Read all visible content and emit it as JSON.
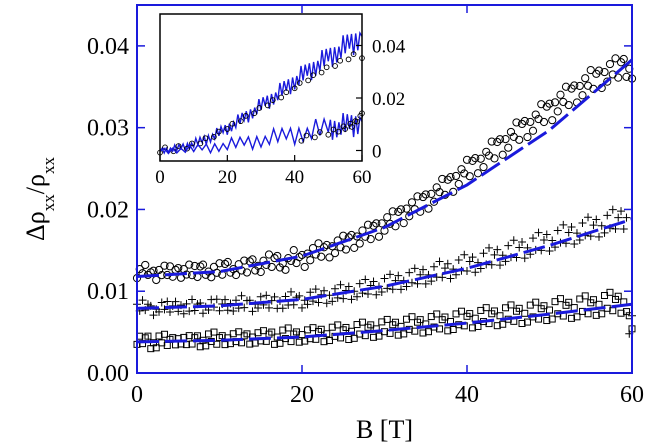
{
  "chart_data": [
    {
      "type": "scatter",
      "title": "",
      "xlabel": "B [T]",
      "ylabel": "Δρ_xx/ρ_xx",
      "xlim": [
        0,
        60
      ],
      "ylim": [
        0,
        0.045
      ],
      "x_ticks": [
        0,
        20,
        40,
        60
      ],
      "x_tick_labels": [
        "0",
        "20",
        "40",
        "60"
      ],
      "y_ticks": [
        0,
        0.01,
        0.02,
        0.03,
        0.04
      ],
      "y_tick_labels": [
        "0.00",
        "0.01",
        "0.02",
        "0.03",
        "0.04"
      ],
      "grid": false,
      "colors": {
        "data": "#000000",
        "fit": "#1a1adc",
        "frame": "#1a1adc"
      },
      "series": [
        {
          "marker": "circle",
          "points": [
            [
              0,
              0.0122
            ],
            [
              1,
              0.0125
            ],
            [
              2,
              0.0121
            ],
            [
              3,
              0.0126
            ],
            [
              4,
              0.0123
            ],
            [
              5,
              0.0124
            ],
            [
              6,
              0.0127
            ],
            [
              7,
              0.0123
            ],
            [
              8,
              0.0128
            ],
            [
              9,
              0.0124
            ],
            [
              10,
              0.0126
            ],
            [
              11,
              0.0131
            ],
            [
              12,
              0.0127
            ],
            [
              13,
              0.0129
            ],
            [
              14,
              0.0134
            ],
            [
              15,
              0.0131
            ],
            [
              16,
              0.0136
            ],
            [
              17,
              0.0138
            ],
            [
              18,
              0.0134
            ],
            [
              19,
              0.0141
            ],
            [
              20,
              0.0139
            ],
            [
              21,
              0.0146
            ],
            [
              22,
              0.0149
            ],
            [
              23,
              0.0151
            ],
            [
              24,
              0.0155
            ],
            [
              25,
              0.0158
            ],
            [
              26,
              0.0163
            ],
            [
              27,
              0.0167
            ],
            [
              28,
              0.0171
            ],
            [
              29,
              0.0177
            ],
            [
              30,
              0.0183
            ],
            [
              31,
              0.0187
            ],
            [
              32,
              0.0194
            ],
            [
              33,
              0.0201
            ],
            [
              34,
              0.0205
            ],
            [
              35,
              0.0212
            ],
            [
              36,
              0.0219
            ],
            [
              37,
              0.0226
            ],
            [
              38,
              0.0233
            ],
            [
              39,
              0.0241
            ],
            [
              40,
              0.0249
            ],
            [
              41,
              0.0256
            ],
            [
              42,
              0.0262
            ],
            [
              43,
              0.0271
            ],
            [
              44,
              0.0279
            ],
            [
              45,
              0.0286
            ],
            [
              46,
              0.0294
            ],
            [
              47,
              0.0301
            ],
            [
              48,
              0.0307
            ],
            [
              49,
              0.0316
            ],
            [
              50,
              0.0322
            ],
            [
              51,
              0.0331
            ],
            [
              52,
              0.0337
            ],
            [
              53,
              0.0344
            ],
            [
              54,
              0.0351
            ],
            [
              55,
              0.0357
            ],
            [
              56,
              0.0362
            ],
            [
              57,
              0.0368
            ],
            [
              58,
              0.0371
            ],
            [
              59,
              0.0376
            ],
            [
              60,
              0.0372
            ]
          ]
        },
        {
          "marker": "plus",
          "points": [
            [
              0,
              0.0079
            ],
            [
              1,
              0.0082
            ],
            [
              2,
              0.0078
            ],
            [
              3,
              0.0081
            ],
            [
              4,
              0.008
            ],
            [
              5,
              0.0083
            ],
            [
              6,
              0.0079
            ],
            [
              7,
              0.0082
            ],
            [
              8,
              0.0081
            ],
            [
              9,
              0.0084
            ],
            [
              10,
              0.0082
            ],
            [
              11,
              0.0085
            ],
            [
              12,
              0.0083
            ],
            [
              13,
              0.0086
            ],
            [
              14,
              0.0084
            ],
            [
              15,
              0.0087
            ],
            [
              16,
              0.0086
            ],
            [
              17,
              0.0088
            ],
            [
              18,
              0.0087
            ],
            [
              19,
              0.009
            ],
            [
              20,
              0.0089
            ],
            [
              21,
              0.0092
            ],
            [
              22,
              0.0093
            ],
            [
              23,
              0.0095
            ],
            [
              24,
              0.0096
            ],
            [
              25,
              0.0098
            ],
            [
              26,
              0.01
            ],
            [
              27,
              0.0102
            ],
            [
              28,
              0.0104
            ],
            [
              29,
              0.0106
            ],
            [
              30,
              0.0108
            ],
            [
              31,
              0.011
            ],
            [
              32,
              0.0113
            ],
            [
              33,
              0.0115
            ],
            [
              34,
              0.0117
            ],
            [
              35,
              0.012
            ],
            [
              36,
              0.0122
            ],
            [
              37,
              0.0125
            ],
            [
              38,
              0.0127
            ],
            [
              39,
              0.013
            ],
            [
              40,
              0.0133
            ],
            [
              41,
              0.0135
            ],
            [
              42,
              0.0138
            ],
            [
              43,
              0.0141
            ],
            [
              44,
              0.0144
            ],
            [
              45,
              0.0147
            ],
            [
              46,
              0.015
            ],
            [
              47,
              0.0153
            ],
            [
              48,
              0.0156
            ],
            [
              49,
              0.0159
            ],
            [
              50,
              0.0162
            ],
            [
              51,
              0.0165
            ],
            [
              52,
              0.0168
            ],
            [
              53,
              0.0171
            ],
            [
              54,
              0.0174
            ],
            [
              55,
              0.0177
            ],
            [
              56,
              0.018
            ],
            [
              57,
              0.0183
            ],
            [
              58,
              0.0186
            ],
            [
              59,
              0.019
            ],
            [
              60,
              0.006
            ]
          ]
        },
        {
          "marker": "square",
          "points": [
            [
              0,
              0.0038
            ],
            [
              1,
              0.0041
            ],
            [
              2,
              0.0037
            ],
            [
              3,
              0.004
            ],
            [
              4,
              0.0039
            ],
            [
              5,
              0.0042
            ],
            [
              6,
              0.0038
            ],
            [
              7,
              0.0041
            ],
            [
              8,
              0.004
            ],
            [
              9,
              0.0042
            ],
            [
              10,
              0.0041
            ],
            [
              11,
              0.0043
            ],
            [
              12,
              0.0042
            ],
            [
              13,
              0.0043
            ],
            [
              14,
              0.0044
            ],
            [
              15,
              0.0043
            ],
            [
              16,
              0.0045
            ],
            [
              17,
              0.0044
            ],
            [
              18,
              0.0046
            ],
            [
              19,
              0.0045
            ],
            [
              20,
              0.0047
            ],
            [
              21,
              0.0046
            ],
            [
              22,
              0.0048
            ],
            [
              23,
              0.0048
            ],
            [
              24,
              0.0049
            ],
            [
              25,
              0.005
            ],
            [
              26,
              0.0051
            ],
            [
              27,
              0.0052
            ],
            [
              28,
              0.0053
            ],
            [
              29,
              0.0054
            ],
            [
              30,
              0.0055
            ],
            [
              31,
              0.0056
            ],
            [
              32,
              0.0057
            ],
            [
              33,
              0.0058
            ],
            [
              34,
              0.0059
            ],
            [
              35,
              0.006
            ],
            [
              36,
              0.0061
            ],
            [
              37,
              0.0062
            ],
            [
              38,
              0.0063
            ],
            [
              39,
              0.0064
            ],
            [
              40,
              0.0066
            ],
            [
              41,
              0.0067
            ],
            [
              42,
              0.0068
            ],
            [
              43,
              0.0069
            ],
            [
              44,
              0.007
            ],
            [
              45,
              0.0071
            ],
            [
              46,
              0.0072
            ],
            [
              47,
              0.0073
            ],
            [
              48,
              0.0074
            ],
            [
              49,
              0.0075
            ],
            [
              50,
              0.0077
            ],
            [
              51,
              0.0078
            ],
            [
              52,
              0.0079
            ],
            [
              53,
              0.008
            ],
            [
              54,
              0.0081
            ],
            [
              55,
              0.0082
            ],
            [
              56,
              0.0084
            ],
            [
              57,
              0.0085
            ],
            [
              58,
              0.0086
            ],
            [
              59,
              0.0087
            ],
            [
              60,
              0.006
            ]
          ]
        }
      ],
      "fit_curves": [
        {
          "style": "dashed",
          "points": [
            [
              0,
              0.0118
            ],
            [
              10,
              0.0124
            ],
            [
              20,
              0.0143
            ],
            [
              30,
              0.0178
            ],
            [
              40,
              0.023
            ],
            [
              50,
              0.0297
            ],
            [
              60,
              0.0383
            ]
          ]
        },
        {
          "style": "dashed",
          "points": [
            [
              0,
              0.0079
            ],
            [
              10,
              0.0082
            ],
            [
              20,
              0.009
            ],
            [
              30,
              0.0106
            ],
            [
              40,
              0.0128
            ],
            [
              50,
              0.0156
            ],
            [
              60,
              0.0188
            ]
          ]
        },
        {
          "style": "dashed",
          "points": [
            [
              0,
              0.0038
            ],
            [
              10,
              0.004
            ],
            [
              20,
              0.0044
            ],
            [
              30,
              0.0052
            ],
            [
              40,
              0.0061
            ],
            [
              50,
              0.0072
            ],
            [
              60,
              0.0084
            ]
          ]
        }
      ]
    },
    {
      "type": "line",
      "title": "",
      "xlabel": "",
      "ylabel": "",
      "xlim": [
        0,
        60
      ],
      "ylim": [
        -0.004,
        0.052
      ],
      "x_ticks": [
        0,
        20,
        40,
        60
      ],
      "x_tick_labels": [
        "0",
        "20",
        "40",
        "60"
      ],
      "y_ticks": [
        0,
        0.02,
        0.04
      ],
      "y_tick_labels": [
        "0",
        "0.02",
        "0.04"
      ],
      "y_axis_side": "right",
      "legend_position": "inset-top-left",
      "series": [
        {
          "style": "line",
          "points": [
            [
              0,
              0
            ],
            [
              5,
              0.0008
            ],
            [
              10,
              0.0025
            ],
            [
              15,
              0.005
            ],
            [
              20,
              0.0085
            ],
            [
              25,
              0.0125
            ],
            [
              30,
              0.017
            ],
            [
              35,
              0.0215
            ],
            [
              40,
              0.0265
            ],
            [
              45,
              0.031
            ],
            [
              50,
              0.0355
            ],
            [
              55,
              0.0395
            ],
            [
              60,
              0.0435
            ]
          ]
        },
        {
          "style": "circles",
          "points": [
            [
              0,
              0
            ],
            [
              4,
              0.0005
            ],
            [
              8,
              0.0015
            ],
            [
              12,
              0.0035
            ],
            [
              16,
              0.006
            ],
            [
              20,
              0.009
            ],
            [
              24,
              0.012
            ],
            [
              28,
              0.015
            ],
            [
              32,
              0.018
            ],
            [
              36,
              0.021
            ],
            [
              40,
              0.0245
            ],
            [
              44,
              0.0275
            ],
            [
              48,
              0.0305
            ],
            [
              52,
              0.033
            ],
            [
              56,
              0.0355
            ],
            [
              60,
              0.036
            ]
          ]
        },
        {
          "style": "line",
          "points": [
            [
              0,
              0
            ],
            [
              10,
              0.0005
            ],
            [
              20,
              0.002
            ],
            [
              30,
              0.004
            ],
            [
              40,
              0.0062
            ],
            [
              50,
              0.0085
            ],
            [
              55,
              0.0095
            ],
            [
              60,
              0.011
            ]
          ]
        },
        {
          "style": "circles",
          "points": [
            [
              42,
              0.0045
            ],
            [
              46,
              0.0058
            ],
            [
              50,
              0.0068
            ],
            [
              53,
              0.008
            ],
            [
              55,
              0.009
            ],
            [
              57,
              0.0098
            ],
            [
              58,
              0.012
            ],
            [
              60,
              0.015
            ]
          ]
        }
      ]
    }
  ]
}
